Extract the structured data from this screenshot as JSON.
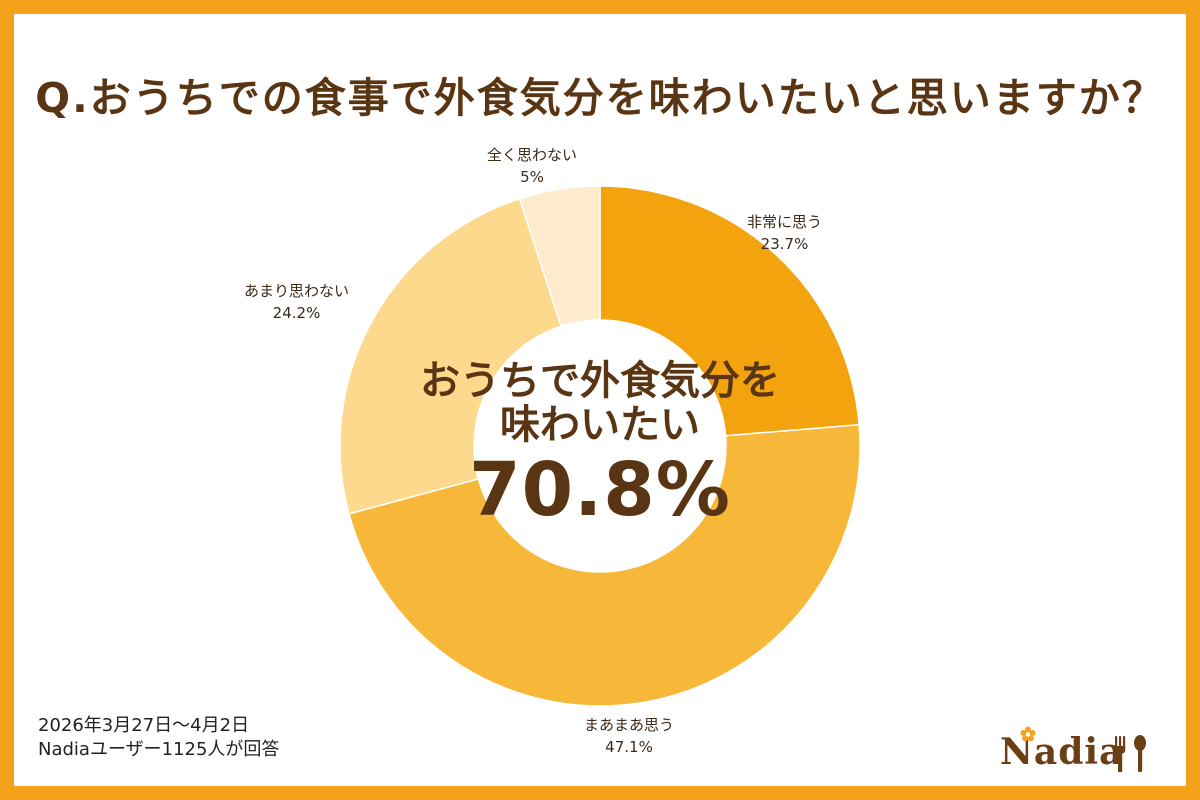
{
  "question": "Q.おうちでの食事で外食気分を味わいたいと思いますか？",
  "center": {
    "line1": "おうちで外食気分を",
    "line2": "味わいたい",
    "value": "70.8%"
  },
  "chart_data": {
    "type": "pie",
    "subtype": "donut",
    "categories": [
      "非常に思う",
      "まあまあ思う",
      "あまり思わない",
      "全く思わない"
    ],
    "values": [
      23.7,
      47.1,
      24.2,
      5
    ],
    "value_labels": [
      "23.7%",
      "47.1%",
      "24.2%",
      "5%"
    ],
    "colors": [
      "#F2A30D",
      "#F7B839",
      "#FCD98C",
      "#FEEBCB"
    ],
    "start": "12 o'clock, clockwise"
  },
  "footer": {
    "period": "2026年3月27日～4月2日",
    "respondents": "Nadiaユーザー1125人が回答"
  },
  "logo": {
    "text": "Nadia",
    "colors": {
      "text": "#6B3F16",
      "flower": "#F4A21C"
    },
    "icons": [
      "flower-icon",
      "fork-icon",
      "spoon-icon"
    ]
  }
}
